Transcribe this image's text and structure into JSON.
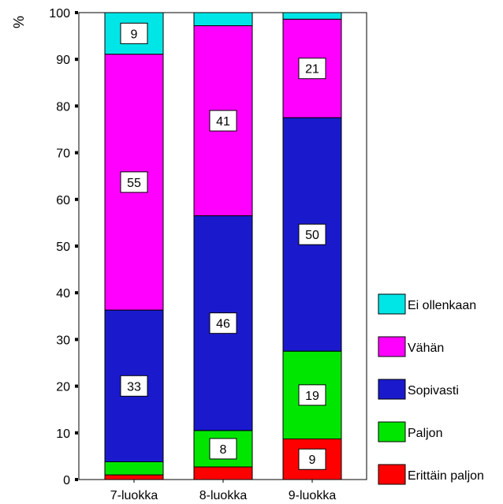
{
  "chart_data": {
    "type": "bar",
    "stacked": true,
    "ylabel": "%",
    "ylim": [
      0,
      100
    ],
    "yticks": [
      0,
      10,
      20,
      30,
      40,
      50,
      60,
      70,
      80,
      90,
      100
    ],
    "categories": [
      "7-luokka",
      "8-luokka",
      "9-luokka"
    ],
    "series": [
      {
        "name": "Erittäin paljon",
        "color": "#ff0000",
        "values": [
          1,
          2.7,
          8.7
        ],
        "labels": [
          "",
          "",
          "9"
        ]
      },
      {
        "name": "Paljon",
        "color": "#00e600",
        "values": [
          2.8,
          7.8,
          18.8
        ],
        "labels": [
          "",
          "8",
          "19"
        ]
      },
      {
        "name": "Sopivasti",
        "color": "#1a1acc",
        "values": [
          32.5,
          46,
          50
        ],
        "labels": [
          "33",
          "46",
          "50"
        ]
      },
      {
        "name": "Vähän",
        "color": "#ff00ff",
        "values": [
          54.8,
          40.7,
          21.1
        ],
        "labels": [
          "55",
          "41",
          "21"
        ]
      },
      {
        "name": "Ei ollenkaan",
        "color": "#00e6e6",
        "values": [
          8.9,
          2.8,
          1.4
        ],
        "labels": [
          "9",
          "",
          ""
        ]
      }
    ],
    "legend_position": "right",
    "legend_order": [
      "Ei ollenkaan",
      "Vähän",
      "Sopivasti",
      "Paljon",
      "Erittäin paljon"
    ],
    "grid": false
  }
}
